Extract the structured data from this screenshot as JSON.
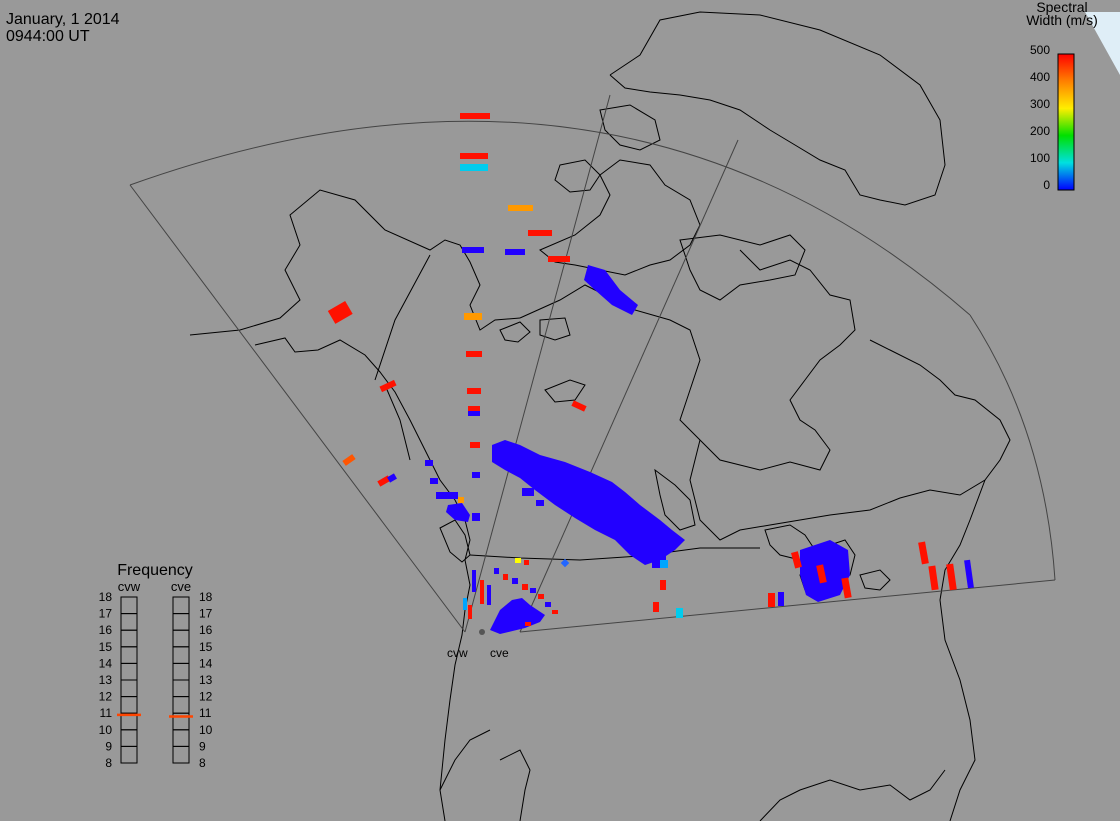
{
  "header": {
    "date": "January, 1 2014",
    "time": "0944:00 UT"
  },
  "colorbar": {
    "title_line1": "Spectral",
    "title_line2": "Width (m/s)",
    "ticks": [
      "500",
      "400",
      "300",
      "200",
      "100",
      "0"
    ],
    "colors_top_to_bottom": [
      "#ff0000",
      "#ff8000",
      "#ffff00",
      "#00e000",
      "#00e0e0",
      "#0000ff"
    ]
  },
  "frequency_panel": {
    "title": "Frequency",
    "radars": [
      "cvw",
      "cve"
    ],
    "ticks": [
      "18",
      "17",
      "16",
      "15",
      "14",
      "13",
      "12",
      "11",
      "10",
      "9",
      "8"
    ],
    "cvw_value_mhz": 10.9,
    "cve_value_mhz": 10.8,
    "marker_color": "#ff4500"
  },
  "radar_sites": {
    "cvw_label": "cvw",
    "cve_label": "cve"
  },
  "colors": {
    "background": "#999999",
    "land_lines": "#000000",
    "fov_lines": "#444444",
    "corner": "#dfeef7",
    "blue": "#2200ff",
    "red": "#ff1100",
    "orange": "#ff9900",
    "cyan": "#00ccee",
    "yellow": "#ffff00",
    "sky": "#00a5ff"
  }
}
